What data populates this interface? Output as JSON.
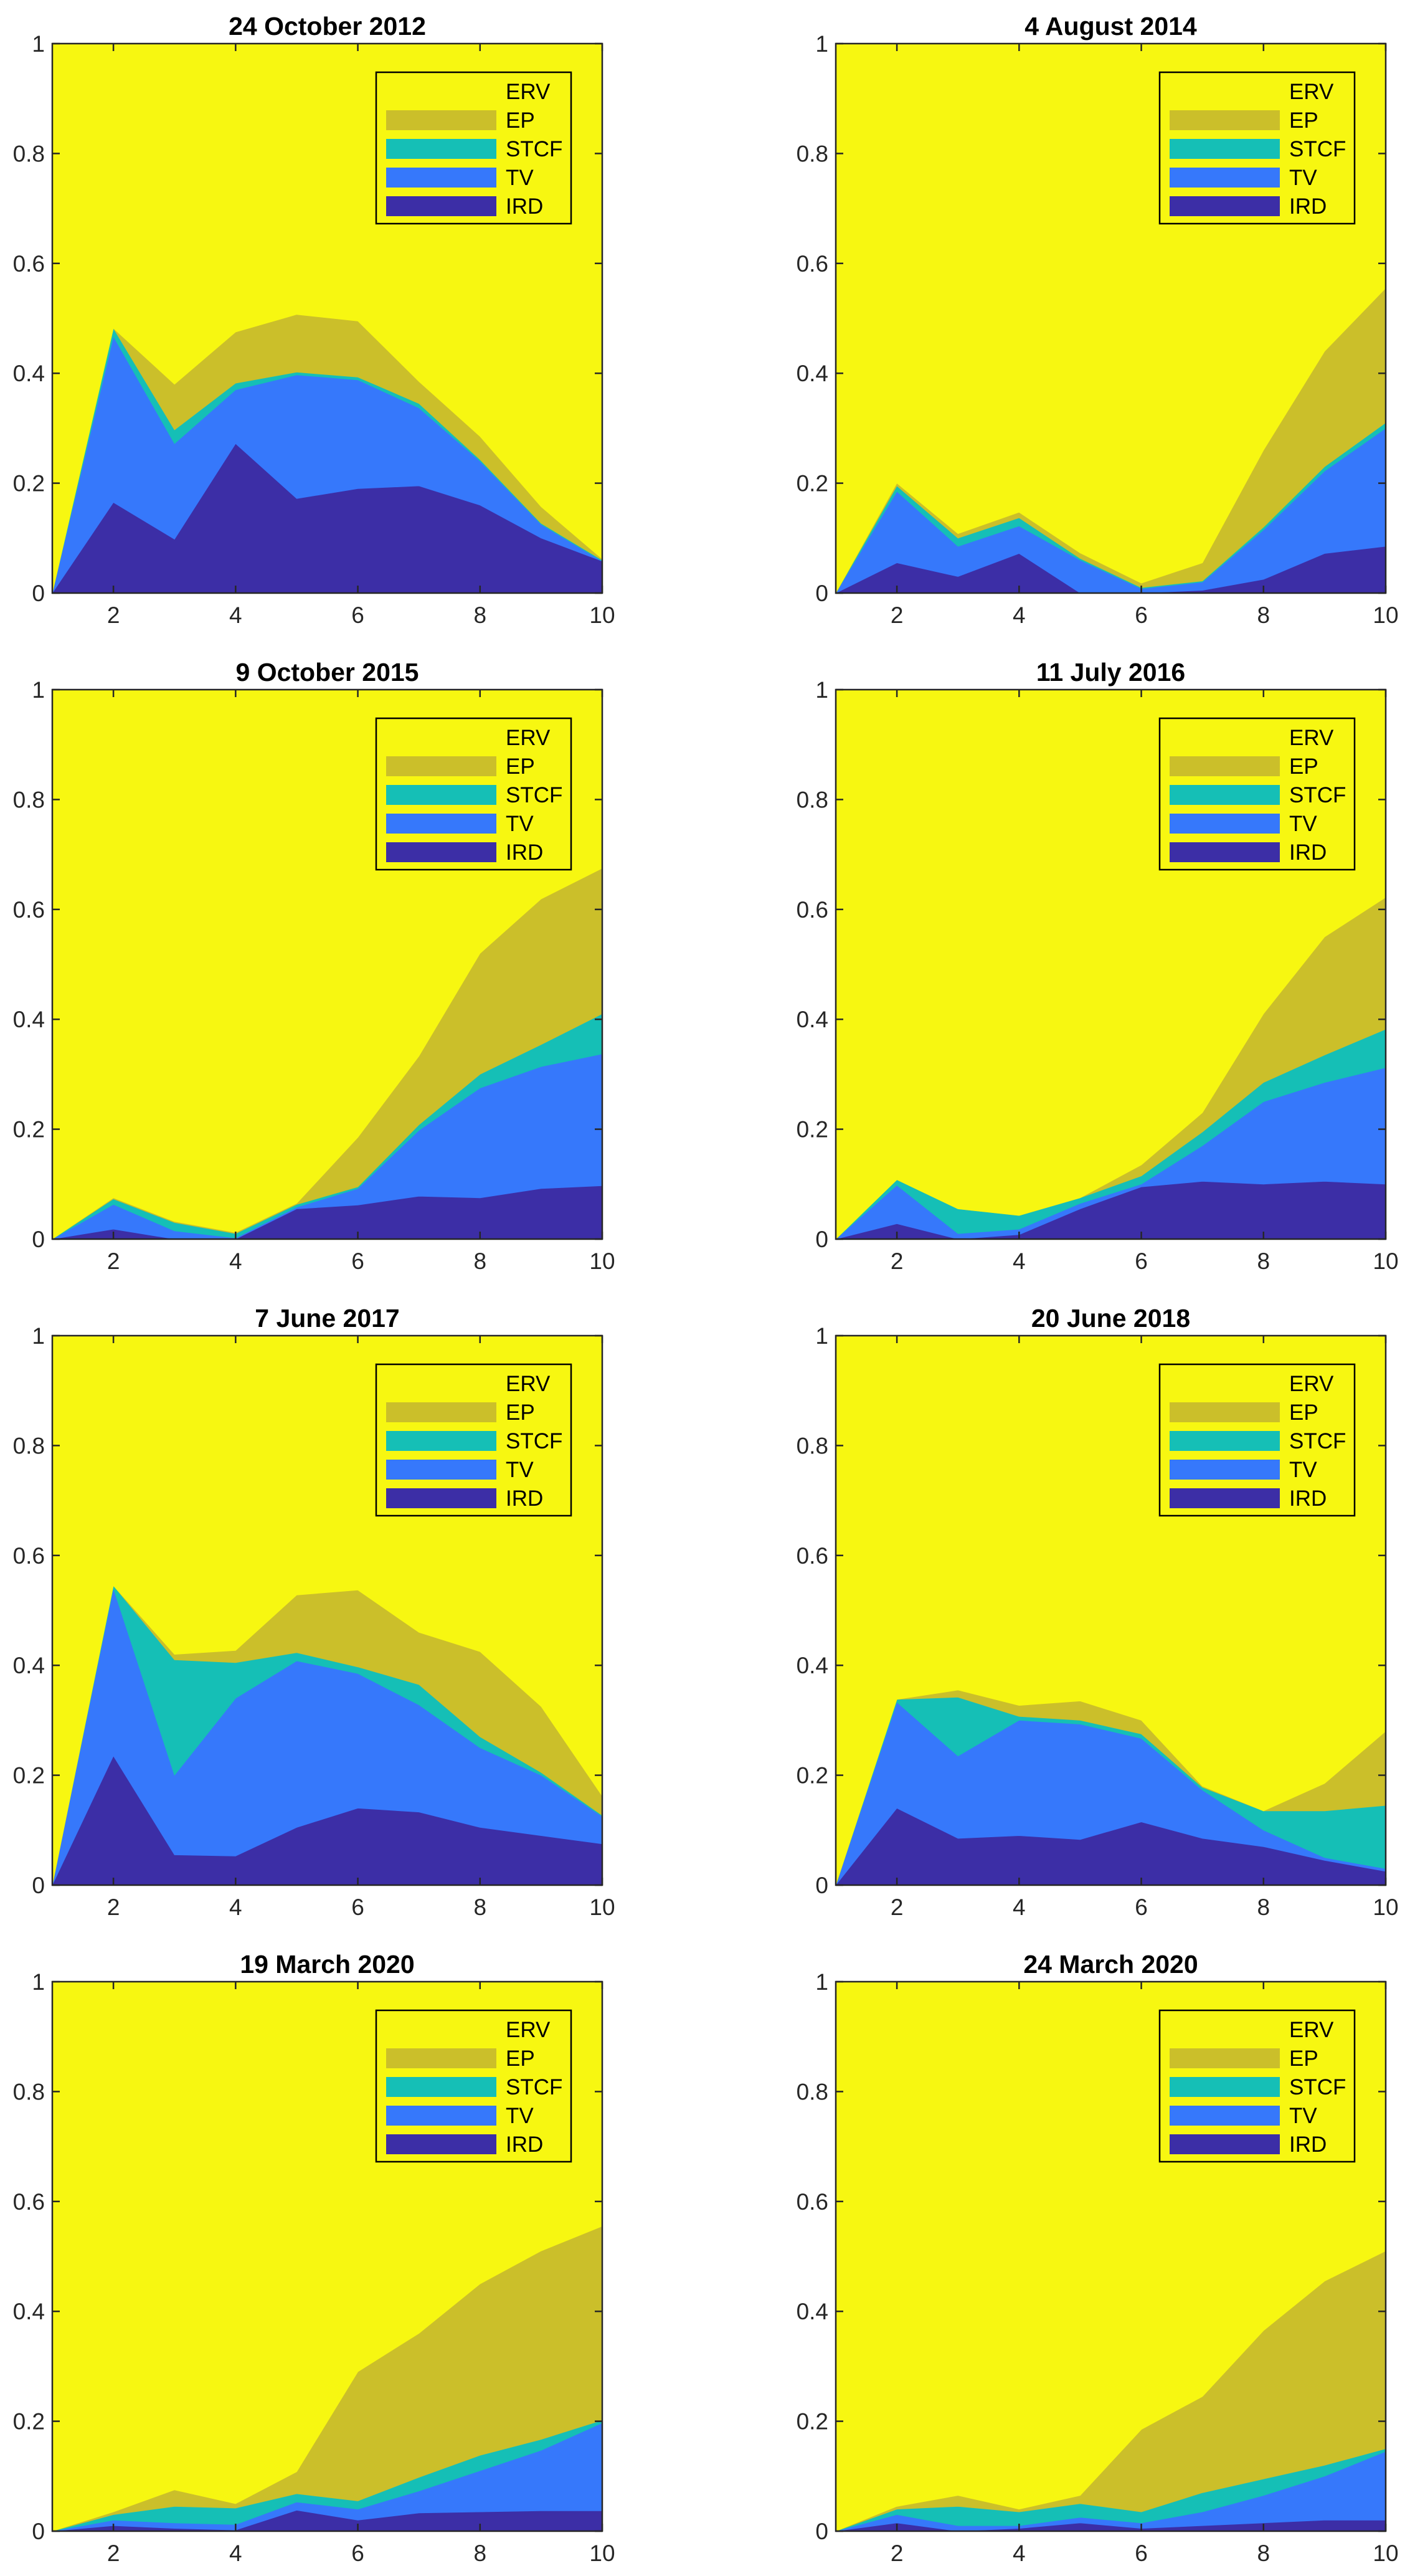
{
  "colors": {
    "ERV": "#f7f711",
    "EP": "#cbbf2a",
    "STCF": "#15bfb6",
    "TV": "#3678fb",
    "IRD": "#3c2ea6",
    "axes": "#262626",
    "title": "#000000",
    "legend_bg": "#f7f711",
    "legend_border": "#000000"
  },
  "legend": {
    "entries": [
      "ERV",
      "EP",
      "STCF",
      "TV",
      "IRD"
    ],
    "location": "top-right"
  },
  "chart_data": [
    {
      "type": "area",
      "stacked": true,
      "title": "24 October 2012",
      "x": [
        1,
        2,
        3,
        4,
        5,
        6,
        7,
        8,
        9,
        10
      ],
      "xticks": [
        "2",
        "4",
        "6",
        "8",
        "10"
      ],
      "xlim": [
        1,
        10
      ],
      "yticks": [
        "0",
        "0.2",
        "0.4",
        "0.6",
        "0.8",
        "1"
      ],
      "ylim": [
        0,
        1
      ],
      "series": [
        {
          "name": "IRD",
          "values": [
            0,
            0.165,
            0.098,
            0.272,
            0.172,
            0.19,
            0.195,
            0.16,
            0.1,
            0.058
          ]
        },
        {
          "name": "TV",
          "values": [
            0,
            0.302,
            0.174,
            0.098,
            0.225,
            0.198,
            0.142,
            0.08,
            0.025,
            0.0
          ]
        },
        {
          "name": "STCF",
          "values": [
            0,
            0.015,
            0.025,
            0.012,
            0.005,
            0.005,
            0.008,
            0.003,
            0.002,
            0.002
          ]
        },
        {
          "name": "EP",
          "values": [
            0,
            0.0,
            0.083,
            0.093,
            0.105,
            0.102,
            0.04,
            0.042,
            0.03,
            0.002
          ]
        },
        {
          "name": "ERV",
          "values": [
            1,
            0.518,
            0.62,
            0.525,
            0.493,
            0.505,
            0.615,
            0.715,
            0.843,
            0.938
          ]
        }
      ]
    },
    {
      "type": "area",
      "stacked": true,
      "title": "4 August 2014",
      "x": [
        1,
        2,
        3,
        4,
        5,
        6,
        7,
        8,
        9,
        10
      ],
      "xticks": [
        "2",
        "4",
        "6",
        "8",
        "10"
      ],
      "xlim": [
        1,
        10
      ],
      "yticks": [
        "0",
        "0.2",
        "0.4",
        "0.6",
        "0.8",
        "1"
      ],
      "ylim": [
        0,
        1
      ],
      "series": [
        {
          "name": "IRD",
          "values": [
            0,
            0.055,
            0.03,
            0.072,
            0.0,
            0.0,
            0.005,
            0.025,
            0.072,
            0.085
          ]
        },
        {
          "name": "TV",
          "values": [
            0,
            0.13,
            0.055,
            0.05,
            0.06,
            0.008,
            0.015,
            0.09,
            0.15,
            0.215
          ]
        },
        {
          "name": "STCF",
          "values": [
            0,
            0.01,
            0.015,
            0.015,
            0.003,
            0.002,
            0.002,
            0.005,
            0.008,
            0.01
          ]
        },
        {
          "name": "EP",
          "values": [
            0,
            0.005,
            0.008,
            0.01,
            0.01,
            0.008,
            0.033,
            0.14,
            0.21,
            0.245
          ]
        },
        {
          "name": "ERV",
          "values": [
            1,
            0.8,
            0.892,
            0.853,
            0.927,
            0.982,
            0.945,
            0.74,
            0.56,
            0.445
          ]
        }
      ]
    },
    {
      "type": "area",
      "stacked": true,
      "title": "9 October 2015",
      "x": [
        1,
        2,
        3,
        4,
        5,
        6,
        7,
        8,
        9,
        10
      ],
      "xticks": [
        "2",
        "4",
        "6",
        "8",
        "10"
      ],
      "xlim": [
        1,
        10
      ],
      "yticks": [
        "0",
        "0.2",
        "0.4",
        "0.6",
        "0.8",
        "1"
      ],
      "ylim": [
        0,
        1
      ],
      "series": [
        {
          "name": "IRD",
          "values": [
            0,
            0.018,
            0.0,
            0.0,
            0.055,
            0.062,
            0.078,
            0.075,
            0.092,
            0.097
          ]
        },
        {
          "name": "TV",
          "values": [
            0,
            0.045,
            0.015,
            0.002,
            0.003,
            0.03,
            0.12,
            0.2,
            0.222,
            0.24
          ]
        },
        {
          "name": "STCF",
          "values": [
            0,
            0.01,
            0.015,
            0.008,
            0.005,
            0.003,
            0.01,
            0.025,
            0.04,
            0.073
          ]
        },
        {
          "name": "EP",
          "values": [
            0,
            0.002,
            0.002,
            0.002,
            0.002,
            0.09,
            0.125,
            0.22,
            0.265,
            0.265
          ]
        },
        {
          "name": "ERV",
          "values": [
            1,
            0.925,
            0.968,
            0.988,
            0.935,
            0.815,
            0.667,
            0.48,
            0.381,
            0.325
          ]
        }
      ]
    },
    {
      "type": "area",
      "stacked": true,
      "title": "11 July 2016",
      "x": [
        1,
        2,
        3,
        4,
        5,
        6,
        7,
        8,
        9,
        10
      ],
      "xticks": [
        "2",
        "4",
        "6",
        "8",
        "10"
      ],
      "xlim": [
        1,
        10
      ],
      "yticks": [
        "0",
        "0.2",
        "0.4",
        "0.6",
        "0.8",
        "1"
      ],
      "ylim": [
        0,
        1
      ],
      "series": [
        {
          "name": "IRD",
          "values": [
            0,
            0.028,
            0.0,
            0.008,
            0.055,
            0.095,
            0.105,
            0.1,
            0.105,
            0.1
          ]
        },
        {
          "name": "TV",
          "values": [
            0,
            0.07,
            0.01,
            0.01,
            0.01,
            0.005,
            0.065,
            0.15,
            0.18,
            0.212
          ]
        },
        {
          "name": "STCF",
          "values": [
            0,
            0.01,
            0.045,
            0.025,
            0.01,
            0.015,
            0.025,
            0.035,
            0.05,
            0.07
          ]
        },
        {
          "name": "EP",
          "values": [
            0,
            0.0,
            0.0,
            0.0,
            0.0,
            0.02,
            0.035,
            0.125,
            0.215,
            0.24
          ]
        },
        {
          "name": "ERV",
          "values": [
            1,
            0.892,
            0.945,
            0.957,
            0.925,
            0.865,
            0.77,
            0.59,
            0.45,
            0.378
          ]
        }
      ]
    },
    {
      "type": "area",
      "stacked": true,
      "title": "7 June 2017",
      "x": [
        1,
        2,
        3,
        4,
        5,
        6,
        7,
        8,
        9,
        10
      ],
      "xticks": [
        "2",
        "4",
        "6",
        "8",
        "10"
      ],
      "xlim": [
        1,
        10
      ],
      "yticks": [
        "0",
        "0.2",
        "0.4",
        "0.6",
        "0.8",
        "1"
      ],
      "ylim": [
        0,
        1
      ],
      "series": [
        {
          "name": "IRD",
          "values": [
            0,
            0.235,
            0.055,
            0.053,
            0.105,
            0.14,
            0.133,
            0.105,
            0.09,
            0.075
          ]
        },
        {
          "name": "TV",
          "values": [
            0,
            0.305,
            0.145,
            0.287,
            0.303,
            0.245,
            0.195,
            0.145,
            0.11,
            0.05
          ]
        },
        {
          "name": "STCF",
          "values": [
            0,
            0.005,
            0.21,
            0.065,
            0.015,
            0.012,
            0.037,
            0.02,
            0.005,
            0.002
          ]
        },
        {
          "name": "EP",
          "values": [
            0,
            0.0,
            0.01,
            0.022,
            0.105,
            0.14,
            0.095,
            0.155,
            0.12,
            0.035
          ]
        },
        {
          "name": "ERV",
          "values": [
            1,
            0.455,
            0.58,
            0.573,
            0.472,
            0.463,
            0.54,
            0.575,
            0.675,
            0.838
          ]
        }
      ]
    },
    {
      "type": "area",
      "stacked": true,
      "title": "20 June 2018",
      "x": [
        1,
        2,
        3,
        4,
        5,
        6,
        7,
        8,
        9,
        10
      ],
      "xticks": [
        "2",
        "4",
        "6",
        "8",
        "10"
      ],
      "xlim": [
        1,
        10
      ],
      "yticks": [
        "0",
        "0.2",
        "0.4",
        "0.6",
        "0.8",
        "1"
      ],
      "ylim": [
        0,
        1
      ],
      "series": [
        {
          "name": "IRD",
          "values": [
            0,
            0.14,
            0.085,
            0.09,
            0.083,
            0.115,
            0.085,
            0.07,
            0.045,
            0.025
          ]
        },
        {
          "name": "TV",
          "values": [
            0,
            0.193,
            0.15,
            0.21,
            0.21,
            0.152,
            0.088,
            0.03,
            0.005,
            0.005
          ]
        },
        {
          "name": "STCF",
          "values": [
            0,
            0.005,
            0.107,
            0.007,
            0.007,
            0.008,
            0.005,
            0.035,
            0.085,
            0.115
          ]
        },
        {
          "name": "EP",
          "values": [
            0,
            0.0,
            0.013,
            0.02,
            0.035,
            0.025,
            0.002,
            0.0,
            0.05,
            0.135
          ]
        },
        {
          "name": "ERV",
          "values": [
            1,
            0.662,
            0.645,
            0.673,
            0.665,
            0.7,
            0.82,
            0.865,
            0.815,
            0.72
          ]
        }
      ]
    },
    {
      "type": "area",
      "stacked": true,
      "title": "19 March 2020",
      "x": [
        1,
        2,
        3,
        4,
        5,
        6,
        7,
        8,
        9,
        10
      ],
      "xticks": [
        "2",
        "4",
        "6",
        "8",
        "10"
      ],
      "xlim": [
        1,
        10
      ],
      "yticks": [
        "0",
        "0.2",
        "0.4",
        "0.6",
        "0.8",
        "1"
      ],
      "ylim": [
        0,
        1
      ],
      "series": [
        {
          "name": "IRD",
          "values": [
            0,
            0.01,
            0.005,
            0.002,
            0.038,
            0.02,
            0.033,
            0.035,
            0.037,
            0.037
          ]
        },
        {
          "name": "TV",
          "values": [
            0,
            0.01,
            0.01,
            0.01,
            0.015,
            0.02,
            0.04,
            0.075,
            0.11,
            0.16
          ]
        },
        {
          "name": "STCF",
          "values": [
            0,
            0.01,
            0.03,
            0.03,
            0.015,
            0.015,
            0.025,
            0.028,
            0.02,
            0.005
          ]
        },
        {
          "name": "EP",
          "values": [
            0,
            0.005,
            0.03,
            0.008,
            0.04,
            0.235,
            0.262,
            0.312,
            0.343,
            0.353
          ]
        },
        {
          "name": "ERV",
          "values": [
            1,
            0.965,
            0.925,
            0.95,
            0.892,
            0.71,
            0.64,
            0.55,
            0.49,
            0.445
          ]
        }
      ]
    },
    {
      "type": "area",
      "stacked": true,
      "title": "24 March 2020",
      "x": [
        1,
        2,
        3,
        4,
        5,
        6,
        7,
        8,
        9,
        10
      ],
      "xticks": [
        "2",
        "4",
        "6",
        "8",
        "10"
      ],
      "xlim": [
        1,
        10
      ],
      "yticks": [
        "0",
        "0.2",
        "0.4",
        "0.6",
        "0.8",
        "1"
      ],
      "ylim": [
        0,
        1
      ],
      "series": [
        {
          "name": "IRD",
          "values": [
            0,
            0.015,
            0.0,
            0.005,
            0.015,
            0.005,
            0.01,
            0.015,
            0.02,
            0.02
          ]
        },
        {
          "name": "TV",
          "values": [
            0,
            0.015,
            0.01,
            0.005,
            0.01,
            0.01,
            0.025,
            0.05,
            0.08,
            0.125
          ]
        },
        {
          "name": "STCF",
          "values": [
            0,
            0.01,
            0.035,
            0.025,
            0.025,
            0.02,
            0.035,
            0.03,
            0.02,
            0.005
          ]
        },
        {
          "name": "EP",
          "values": [
            0,
            0.005,
            0.02,
            0.005,
            0.015,
            0.15,
            0.175,
            0.27,
            0.335,
            0.36
          ]
        },
        {
          "name": "ERV",
          "values": [
            1,
            0.955,
            0.935,
            0.96,
            0.935,
            0.815,
            0.755,
            0.635,
            0.545,
            0.49
          ]
        }
      ]
    }
  ]
}
